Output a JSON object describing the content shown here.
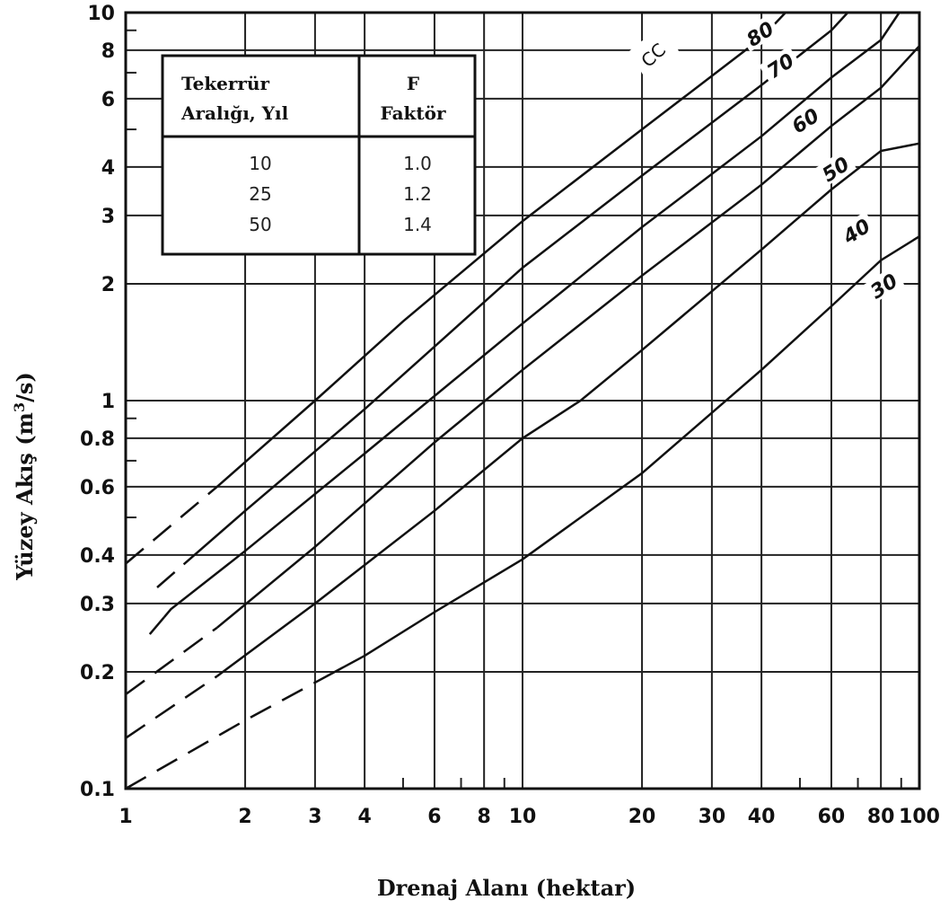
{
  "chart_data": {
    "type": "line",
    "xscale": "log",
    "yscale": "log",
    "xlim": [
      1,
      100
    ],
    "ylim": [
      0.1,
      10
    ],
    "grid": true,
    "xlabel": "Drenaj Alanı (hektar)",
    "ylabel_main": "Yüzey Akış (m",
    "ylabel_sup": "3",
    "ylabel_tail": "/s)",
    "x_ticks": [
      {
        "value": 1,
        "label": "1"
      },
      {
        "value": 2,
        "label": "2"
      },
      {
        "value": 3,
        "label": "3"
      },
      {
        "value": 4,
        "label": "4"
      },
      {
        "value": 6,
        "label": "6"
      },
      {
        "value": 8,
        "label": "8"
      },
      {
        "value": 10,
        "label": "10"
      },
      {
        "value": 20,
        "label": "20"
      },
      {
        "value": 30,
        "label": "30"
      },
      {
        "value": 40,
        "label": "40"
      },
      {
        "value": 60,
        "label": "60"
      },
      {
        "value": 80,
        "label": "80"
      },
      {
        "value": 100,
        "label": "100"
      }
    ],
    "y_ticks": [
      {
        "value": 0.1,
        "label": "0.1"
      },
      {
        "value": 0.2,
        "label": "0.2"
      },
      {
        "value": 0.3,
        "label": "0.3"
      },
      {
        "value": 0.4,
        "label": "0.4"
      },
      {
        "value": 0.6,
        "label": "0.6"
      },
      {
        "value": 0.8,
        "label": "0.8"
      },
      {
        "value": 1,
        "label": "1"
      },
      {
        "value": 2,
        "label": "2"
      },
      {
        "value": 3,
        "label": "3"
      },
      {
        "value": 4,
        "label": "4"
      },
      {
        "value": 6,
        "label": "6"
      },
      {
        "value": 8,
        "label": "8"
      },
      {
        "value": 10,
        "label": "10"
      }
    ],
    "x_grid": [
      1,
      2,
      3,
      4,
      6,
      8,
      10,
      20,
      30,
      40,
      60,
      80,
      100
    ],
    "y_grid": [
      0.1,
      0.2,
      0.3,
      0.4,
      0.6,
      0.8,
      1,
      2,
      3,
      4,
      6,
      8,
      10
    ],
    "series_label_prefix": "CC",
    "series": [
      {
        "label": "80",
        "label_at": [
          40,
          8.7
        ],
        "dashed_to": 1.7,
        "points": [
          [
            1,
            0.38
          ],
          [
            1.7,
            0.6
          ],
          [
            3,
            1.0
          ],
          [
            5,
            1.6
          ],
          [
            10,
            2.9
          ],
          [
            20,
            5.0
          ],
          [
            40,
            8.6
          ],
          [
            46,
            10
          ]
        ]
      },
      {
        "label": "70",
        "label_at": [
          45,
          7.2
        ],
        "dashed_to": 1.4,
        "points": [
          [
            1.2,
            0.33
          ],
          [
            2,
            0.52
          ],
          [
            4,
            0.95
          ],
          [
            10,
            2.2
          ],
          [
            20,
            3.8
          ],
          [
            40,
            6.5
          ],
          [
            60,
            9.0
          ],
          [
            66,
            10
          ]
        ]
      },
      {
        "label": "60",
        "label_at": [
          52,
          5.2
        ],
        "dashed_to": 1.25,
        "points": [
          [
            1.15,
            0.25
          ],
          [
            1.3,
            0.29
          ],
          [
            2,
            0.41
          ],
          [
            4,
            0.73
          ],
          [
            10,
            1.58
          ],
          [
            20,
            2.8
          ],
          [
            40,
            4.8
          ],
          [
            60,
            6.8
          ],
          [
            80,
            8.5
          ],
          [
            89,
            10
          ]
        ]
      },
      {
        "label": "50",
        "label_at": [
          62,
          3.9
        ],
        "dashed_to": 1.7,
        "points": [
          [
            1,
            0.175
          ],
          [
            1.7,
            0.26
          ],
          [
            3,
            0.42
          ],
          [
            6,
            0.78
          ],
          [
            10,
            1.2
          ],
          [
            20,
            2.1
          ],
          [
            40,
            3.6
          ],
          [
            60,
            5.1
          ],
          [
            80,
            6.4
          ],
          [
            100,
            8.2
          ]
        ]
      },
      {
        "label": "40",
        "label_at": [
          70,
          2.7
        ],
        "dashed_to": 1.7,
        "points": [
          [
            1,
            0.135
          ],
          [
            1.7,
            0.195
          ],
          [
            3,
            0.3
          ],
          [
            6,
            0.52
          ],
          [
            10,
            0.8
          ],
          [
            14,
            1.0
          ],
          [
            20,
            1.35
          ],
          [
            40,
            2.45
          ],
          [
            60,
            3.5
          ],
          [
            80,
            4.4
          ],
          [
            100,
            4.6
          ]
        ]
      },
      {
        "label": "30",
        "label_at": [
          82,
          1.95
        ],
        "dashed_to": 3.3,
        "points": [
          [
            1,
            0.1
          ],
          [
            2,
            0.15
          ],
          [
            4,
            0.22
          ],
          [
            6,
            0.285
          ],
          [
            10,
            0.39
          ],
          [
            20,
            0.65
          ],
          [
            40,
            1.2
          ],
          [
            60,
            1.75
          ],
          [
            80,
            2.3
          ],
          [
            100,
            2.65
          ]
        ]
      }
    ]
  },
  "table": {
    "col1_header_line1": "Tekerrür",
    "col1_header_line2": "Aralığı, Yıl",
    "col2_header_line1": "F",
    "col2_header_line2": "Faktör",
    "rows": [
      {
        "period": "10",
        "factor": "1.0"
      },
      {
        "period": "25",
        "factor": "1.2"
      },
      {
        "period": "50",
        "factor": "1.4"
      }
    ]
  }
}
